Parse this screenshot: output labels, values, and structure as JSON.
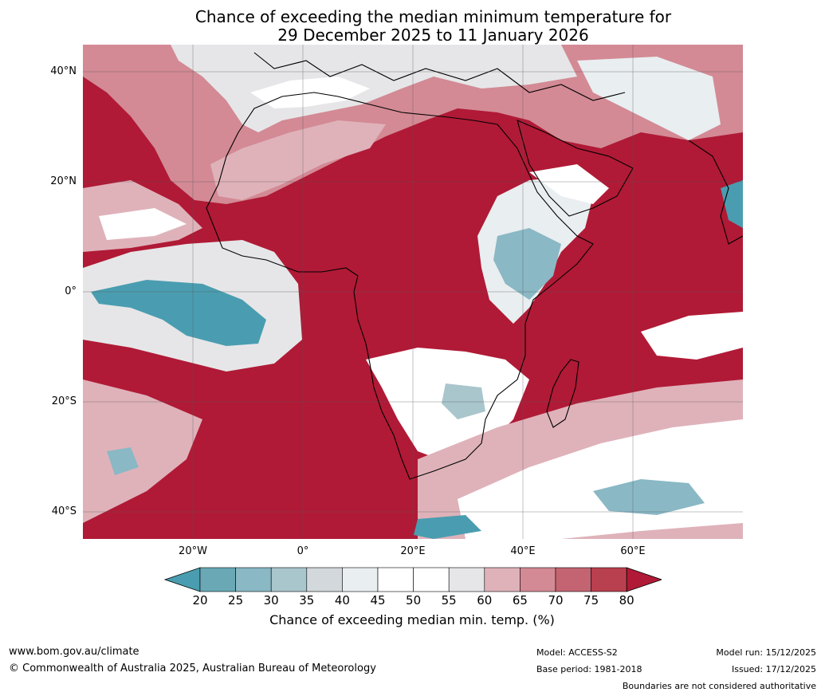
{
  "title_line1": "Chance of exceeding the median minimum temperature for",
  "title_line2": "29 December 2025 to 11 January 2026",
  "lat_ticks": [
    "40°N",
    "20°N",
    "0°",
    "20°S",
    "40°S"
  ],
  "lon_ticks": [
    "20°W",
    "0°",
    "20°E",
    "40°E",
    "60°E"
  ],
  "colorbar": {
    "ticks": [
      "20",
      "25",
      "30",
      "35",
      "40",
      "45",
      "50",
      "55",
      "60",
      "65",
      "70",
      "75",
      "80"
    ],
    "colors": [
      "#4a9db0",
      "#6aa8b6",
      "#8ab8c5",
      "#a9c6cc",
      "#d2d8db",
      "#e9eef0",
      "#ffffff",
      "#ffffff",
      "#e6e6e8",
      "#dfb2ba",
      "#d38a95",
      "#c46472",
      "#b9404f",
      "#b01a36"
    ],
    "title": "Chance of exceeding median min. temp. (%)"
  },
  "footer": {
    "website": "www.bom.gov.au/climate",
    "copyright": "© Commonwealth of Australia 2025, Australian Bureau of Meteorology",
    "model": "Model: ACCESS-S2",
    "base_period": "Base period: 1981-2018",
    "model_run": "Model run: 15/12/2025",
    "issued": "Issued: 17/12/2025",
    "boundaries_note": "Boundaries are not considered authoritative"
  }
}
